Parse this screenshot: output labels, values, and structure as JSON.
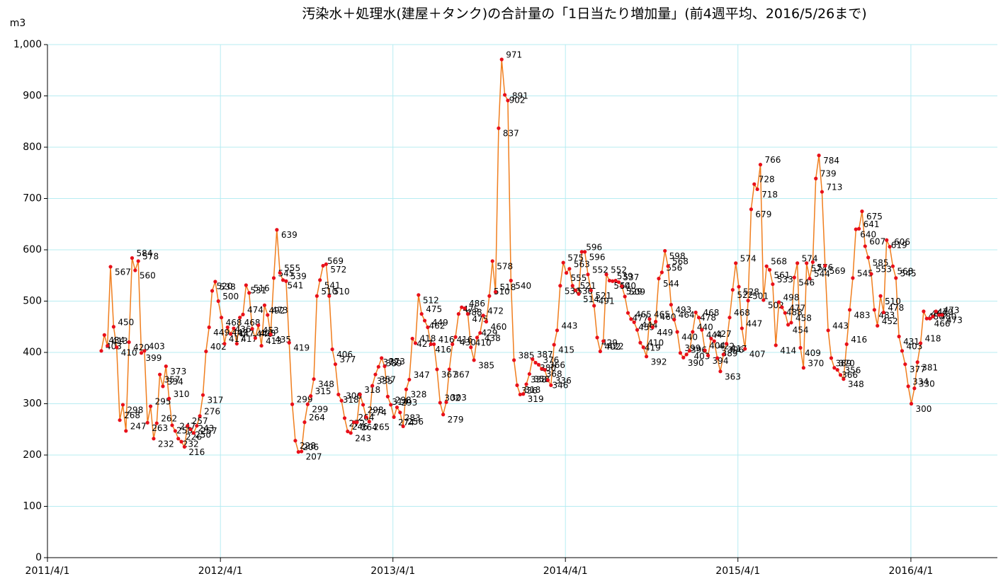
{
  "chart_data": {
    "type": "line",
    "title": "汚染水＋処理水(建屋＋タンク)の合計量の「1日当たり増加量」(前4週平均、2016/5/26まで)",
    "y_label": "m3",
    "ylim": [
      0,
      1000
    ],
    "yticks": [
      0,
      100,
      200,
      300,
      400,
      500,
      600,
      700,
      800,
      900,
      {
        "value": 1000,
        "label": "1,000"
      }
    ],
    "xlim": [
      "2011/4/1",
      "2016/10/1"
    ],
    "xticks": [
      "2011/4/1",
      "2012/4/1",
      "2013/4/1",
      "2014/4/1",
      "2015/4/1",
      "2016/4/1"
    ],
    "grid": true,
    "series": [
      {
        "line_color": "#f07e1e",
        "color": "#e8101a",
        "values": [
          403,
          434,
          413,
          567,
          450,
          410,
          268,
          298,
          247,
          420,
          584,
          560,
          578,
          399,
          403,
          263,
          295,
          232,
          262,
          357,
          334,
          373,
          310,
          258,
          247,
          232,
          226,
          216,
          257,
          250,
          243,
          257,
          276,
          317,
          402,
          449,
          520,
          538,
          500,
          468,
          417,
          449,
          436,
          447,
          417,
          468,
          474,
          531,
          516,
          446,
          428,
          453,
          413,
          492,
          473,
          435,
          545,
          639,
          555,
          541,
          539,
          419,
          299,
          228,
          206,
          207,
          264,
          299,
          315,
          348,
          510,
          541,
          569,
          572,
          510,
          406,
          377,
          318,
          306,
          272,
          246,
          243,
          264,
          264,
          318,
          298,
          274,
          265,
          335,
          357,
          372,
          389,
          373,
          314,
          298,
          274,
          293,
          283,
          256,
          328,
          347,
          427,
          418,
          512,
          475,
          462,
          449,
          416,
          416,
          367,
          302,
          279,
          303,
          367,
          416,
          430,
          475,
          488,
          486,
          475,
          410,
          385,
          429,
          438,
          472,
          460,
          510,
          578,
          518,
          837,
          971,
          902,
          891,
          540,
          385,
          336,
          318,
          319,
          338,
          358,
          387,
          380,
          376,
          368,
          366,
          346,
          336,
          415,
          443,
          530,
          575,
          555,
          563,
          530,
          521,
          514,
          596,
          596,
          552,
          521,
          491,
          429,
          402,
          422,
          552,
          540,
          539,
          540,
          537,
          529,
          509,
          477,
          465,
          459,
          444,
          419,
          410,
          392,
          465,
          449,
          460,
          544,
          556,
          598,
          568,
          493,
          464,
          440,
          399,
          390,
          396,
          403,
          440,
          478,
          468,
          444,
          404,
          394,
          427,
          422,
          389,
          363,
          396,
          417,
          468,
          522,
          574,
          528,
          447,
          407,
          501,
          679,
          728,
          718,
          766,
          502,
          568,
          561,
          533,
          414,
          498,
          488,
          477,
          454,
          458,
          546,
          574,
          409,
          370,
          574,
          544,
          576,
          739,
          784,
          713,
          569,
          443,
          389,
          370,
          366,
          356,
          348,
          416,
          483,
          545,
          640,
          641,
          675,
          607,
          585,
          553,
          483,
          452,
          510,
          478,
          619,
          606,
          568,
          545,
          431,
          403,
          377,
          334,
          300,
          330,
          381,
          418,
          480,
          466,
          466,
          470,
          480,
          473,
          473
        ]
      }
    ]
  }
}
